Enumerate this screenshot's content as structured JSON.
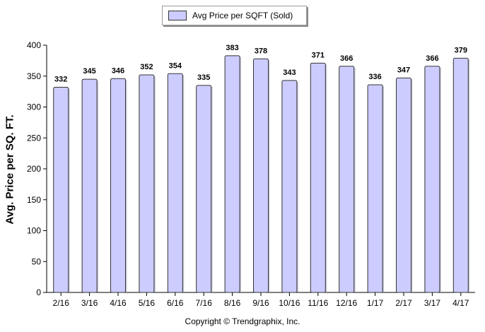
{
  "chart_data": {
    "type": "bar",
    "title": "",
    "xlabel": "",
    "ylabel": "Avg. Price per SQ. FT.",
    "categories": [
      "2/16",
      "3/16",
      "4/16",
      "5/16",
      "6/16",
      "7/16",
      "8/16",
      "9/16",
      "10/16",
      "11/16",
      "12/16",
      "1/17",
      "2/17",
      "3/17",
      "4/17"
    ],
    "series": [
      {
        "name": "Avg Price per SQFT (Sold)",
        "values": [
          332,
          345,
          346,
          352,
          354,
          335,
          383,
          378,
          343,
          371,
          366,
          336,
          347,
          366,
          379
        ]
      }
    ],
    "ylim": [
      0,
      400
    ],
    "yticks": [
      0,
      50,
      100,
      150,
      200,
      250,
      300,
      350,
      400
    ],
    "grid": false,
    "legend": "top-center",
    "bar_color": "#ccccff",
    "bar_border": "#333333",
    "data_labels": true
  },
  "footer": {
    "copyright": "Copyright © Trendgraphix, Inc."
  }
}
